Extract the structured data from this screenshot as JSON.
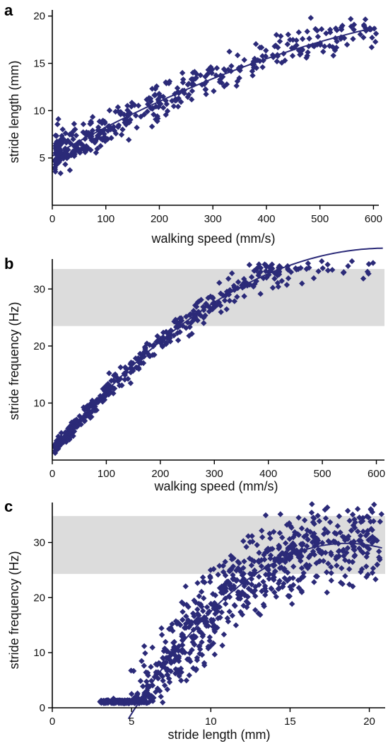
{
  "marker_color": "#2b2a78",
  "curve_color": "#2b2a78",
  "band_color": "#dcdcdc",
  "chart_data": [
    {
      "panel": "a",
      "type": "scatter",
      "xlabel": "walking speed (mm/s)",
      "ylabel": "stride length (mm)",
      "xlim": [
        0,
        610
      ],
      "ylim": [
        0,
        20.5
      ],
      "xticks": [
        0,
        100,
        200,
        300,
        400,
        500,
        600
      ],
      "yticks": [
        5,
        10,
        15,
        20
      ],
      "band": null,
      "trend": {
        "type": "poly",
        "coef": [
          5.2,
          0.032,
          -1.57e-05
        ],
        "x_range": [
          0,
          605
        ]
      },
      "cloud": {
        "n": 420,
        "x_range": [
          5,
          605
        ],
        "x_skew": 1.7,
        "noise": 1.0,
        "noise_scale": "const",
        "seed": 11
      }
    },
    {
      "panel": "b",
      "type": "scatter",
      "xlabel": "walking speed (mm/s)",
      "ylabel": "stride frequency (Hz)",
      "xlim": [
        0,
        615
      ],
      "ylim": [
        0,
        35
      ],
      "xticks": [
        0,
        100,
        200,
        300,
        400,
        500,
        600
      ],
      "yticks": [
        10,
        20,
        30
      ],
      "band": [
        23.5,
        33.5
      ],
      "trend": {
        "type": "poly",
        "coef": [
          1.5,
          0.115,
          -9.27e-05
        ],
        "x_range": [
          5,
          612
        ]
      },
      "cloud": {
        "n": 520,
        "x_range": [
          5,
          600
        ],
        "x_skew": 1.6,
        "noise": 1.3,
        "noise_scale": "grow",
        "seed": 23
      }
    },
    {
      "panel": "c",
      "type": "scatter",
      "xlabel": "stride length (mm)",
      "ylabel": "stride frequency (Hz)",
      "xlim": [
        0,
        21
      ],
      "ylim": [
        0,
        37
      ],
      "xticks": [
        0,
        5,
        10,
        15,
        20
      ],
      "yticks": [
        0,
        10,
        20,
        30
      ],
      "band": [
        24.3,
        34.8
      ],
      "trend": {
        "type": "poly",
        "coef": [
          -28.1,
          6.24,
          -0.168
        ],
        "x_range": [
          4.8,
          20.8
        ]
      },
      "cloud": {
        "n": 850,
        "x_range": [
          3.0,
          20.8
        ],
        "x_skew": 1.15,
        "noise": 3.6,
        "noise_scale": "const",
        "seed": 37
      }
    }
  ]
}
